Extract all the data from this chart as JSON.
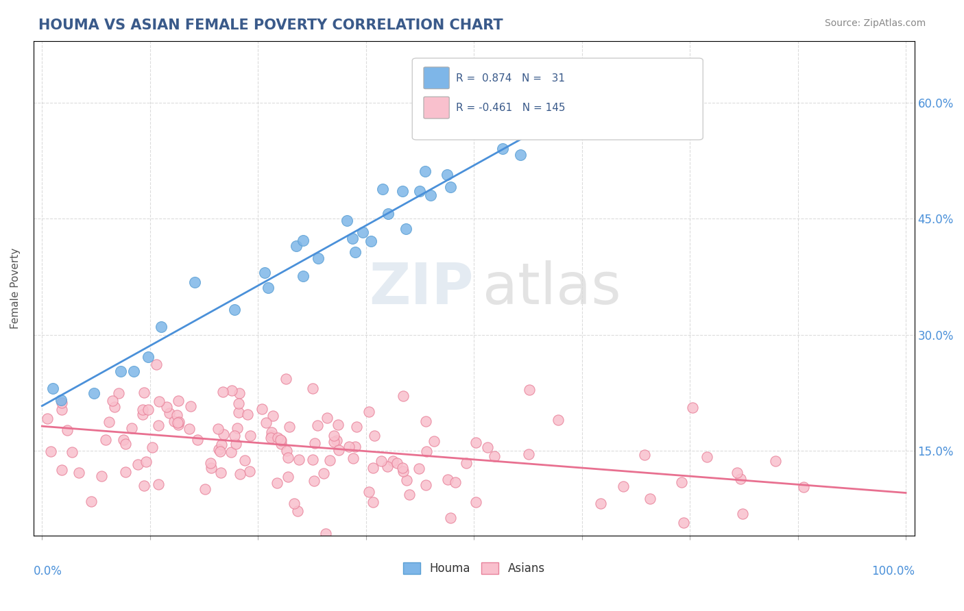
{
  "title": "HOUMA VS ASIAN FEMALE POVERTY CORRELATION CHART",
  "source": "Source: ZipAtlas.com",
  "ylabel": "Female Poverty",
  "yticks": [
    0.15,
    0.3,
    0.45,
    0.6
  ],
  "ytick_labels": [
    "15.0%",
    "30.0%",
    "45.0%",
    "60.0%"
  ],
  "houma_color": "#7eb6e8",
  "houma_edge": "#5a9fd4",
  "asian_color": "#f9c0cd",
  "asian_edge": "#e8829a",
  "trend_houma_color": "#4a90d9",
  "trend_asian_color": "#e87090",
  "background_color": "#ffffff",
  "r_houma": "0.874",
  "n_houma": "31",
  "r_asian": "-0.461",
  "n_asian": "145",
  "legend_label_houma": "Houma",
  "legend_label_asian": "Asians"
}
